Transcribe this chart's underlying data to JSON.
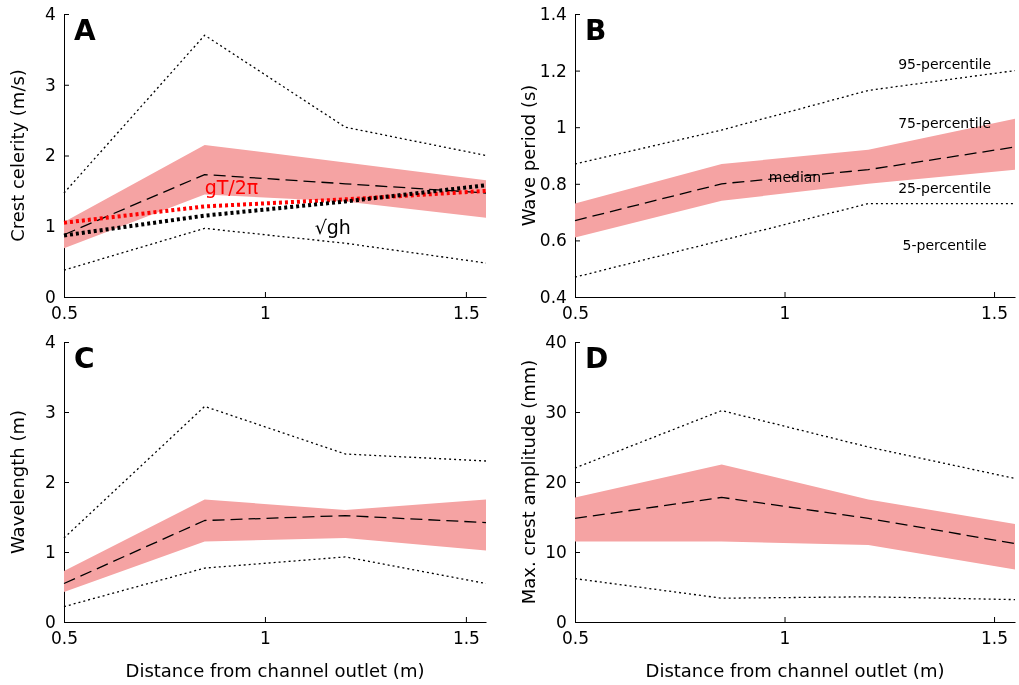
{
  "chart_data": [
    {
      "type": "line",
      "title": "A",
      "ylabel": "Crest celerity (m/s)",
      "x": [
        0.5,
        0.85,
        1.2,
        1.55
      ],
      "xlim": [
        0.5,
        1.55
      ],
      "xticks": [
        0.5,
        1,
        1.5
      ],
      "ylim": [
        0,
        4
      ],
      "yticks": [
        0,
        1,
        2,
        3,
        4
      ],
      "marker": "none",
      "series": [
        {
          "color": "#000000",
          "line_style": "dotted",
          "values": [
            1.47,
            3.7,
            2.4,
            2.0
          ]
        },
        {
          "color": "#000000",
          "line_style": "dotted",
          "values": [
            0.38,
            0.97,
            0.76,
            0.48
          ]
        },
        {
          "color": "#000000",
          "line_style": "dashed",
          "values": [
            0.88,
            1.73,
            1.6,
            1.47
          ],
          "lower": [
            0.69,
            1.45,
            1.35,
            1.12
          ],
          "upper": [
            1.06,
            2.15,
            1.9,
            1.65
          ]
        },
        {
          "name": "gT/2π",
          "color": "#ff0000",
          "line_style": "dotted",
          "values": [
            1.05,
            1.28,
            1.38,
            1.5
          ]
        },
        {
          "name": "√gh",
          "color": "#000000",
          "line_style": "dotted",
          "values": [
            0.87,
            1.15,
            1.35,
            1.58
          ]
        }
      ]
    },
    {
      "type": "line",
      "title": "B",
      "ylabel": "Wave period (s)",
      "x": [
        0.5,
        0.85,
        1.2,
        1.55
      ],
      "xlim": [
        0.5,
        1.55
      ],
      "xticks": [
        0.5,
        1,
        1.5
      ],
      "ylim": [
        0.4,
        1.4
      ],
      "yticks": [
        0.4,
        0.6,
        0.8,
        1,
        1.2,
        1.4
      ],
      "marker": "none",
      "series": [
        {
          "color": "#000000",
          "line_style": "dotted",
          "values": [
            0.87,
            0.99,
            1.13,
            1.2
          ]
        },
        {
          "color": "#000000",
          "line_style": "dotted",
          "values": [
            0.47,
            0.6,
            0.73,
            0.73
          ]
        },
        {
          "color": "#000000",
          "line_style": "dashed",
          "values": [
            0.67,
            0.8,
            0.85,
            0.93
          ],
          "lower": [
            0.61,
            0.74,
            0.8,
            0.85
          ],
          "upper": [
            0.73,
            0.87,
            0.92,
            1.03
          ]
        }
      ],
      "annotations": [
        "95-percentile",
        "75-percentile",
        "median",
        "25-percentile",
        "5-percentile"
      ]
    },
    {
      "type": "line",
      "title": "C",
      "xlabel": "Distance from channel outlet (m)",
      "ylabel": "Wavelength (m)",
      "x": [
        0.5,
        0.85,
        1.2,
        1.55
      ],
      "xlim": [
        0.5,
        1.55
      ],
      "xticks": [
        0.5,
        1,
        1.5
      ],
      "ylim": [
        0,
        4
      ],
      "yticks": [
        0,
        1,
        2,
        3,
        4
      ],
      "marker": "none",
      "series": [
        {
          "color": "#000000",
          "line_style": "dotted",
          "values": [
            1.2,
            3.08,
            2.4,
            2.3
          ]
        },
        {
          "color": "#000000",
          "line_style": "dotted",
          "values": [
            0.22,
            0.77,
            0.93,
            0.55
          ]
        },
        {
          "color": "#000000",
          "line_style": "dashed",
          "values": [
            0.55,
            1.45,
            1.52,
            1.42
          ],
          "lower": [
            0.43,
            1.15,
            1.2,
            1.02
          ],
          "upper": [
            0.73,
            1.75,
            1.6,
            1.75
          ]
        }
      ]
    },
    {
      "type": "line",
      "title": "D",
      "xlabel": "Distance from channel outlet (m)",
      "ylabel": "Max. crest amplitude (mm)",
      "x": [
        0.5,
        0.85,
        1.2,
        1.55
      ],
      "xlim": [
        0.5,
        1.55
      ],
      "xticks": [
        0.5,
        1,
        1.5
      ],
      "ylim": [
        0,
        40
      ],
      "yticks": [
        0,
        10,
        20,
        30,
        40
      ],
      "marker": "none",
      "series": [
        {
          "color": "#000000",
          "line_style": "dotted",
          "values": [
            22,
            30.2,
            25,
            20.5
          ]
        },
        {
          "color": "#000000",
          "line_style": "dotted",
          "values": [
            6.2,
            3.4,
            3.6,
            3.2
          ]
        },
        {
          "color": "#000000",
          "line_style": "dashed",
          "values": [
            14.8,
            17.8,
            14.8,
            11.2
          ],
          "lower": [
            11.5,
            11.5,
            11,
            7.5
          ],
          "upper": [
            17.8,
            22.5,
            17.5,
            14
          ]
        }
      ]
    }
  ]
}
